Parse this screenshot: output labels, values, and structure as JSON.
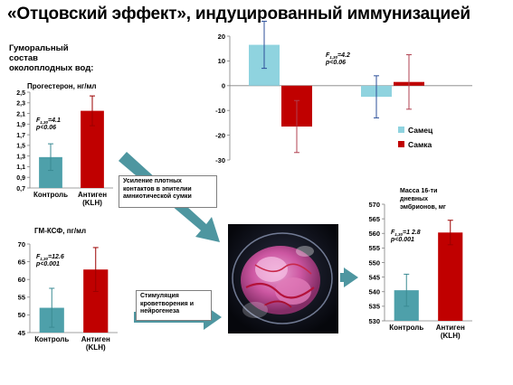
{
  "slide": {
    "title": "«Отцовский эффект», индуцированный иммунизацией",
    "humoral_heading": "Гуморальный\nсостав\nоколоплодных вод:",
    "box_contacts": "Усиление плотных\nконтактов в эпителии\nамниотической сумки",
    "box_angiogenesis": "Стимуляция\nкроветворения и\nнейрогенеза",
    "photo_icon": "embryo-photo"
  },
  "colors": {
    "teal": "#4ea0aa",
    "red": "#c00000",
    "light_blue": "#8fd3df",
    "arrow": "#4e96a0",
    "axis": "#808080"
  },
  "chart_data": [
    {
      "id": "progesterone",
      "type": "bar",
      "title": "Прогестерон,  нг/мл",
      "categories": [
        "Контроль",
        "Антиген\n(KLH)"
      ],
      "values": [
        1.28,
        2.15
      ],
      "errors": [
        0.25,
        0.28
      ],
      "ylim": [
        0.7,
        2.5
      ],
      "yticks": [
        "0,7",
        "0,9",
        "1,1",
        "1,3",
        "1,5",
        "1,7",
        "1,9",
        "2,1",
        "2,3",
        "2,5"
      ],
      "stats": [
        "F",
        "1,30",
        "=4.1",
        "p<0.06"
      ]
    },
    {
      "id": "gm_csf",
      "type": "bar",
      "title": "ГМ-КСФ, пг/мл",
      "categories": [
        "Контроль",
        "Антиген\n(KLH)"
      ],
      "values": [
        52,
        62.8
      ],
      "errors": [
        5.5,
        6.2
      ],
      "ylim": [
        45,
        70
      ],
      "yticks": [
        "45",
        "50",
        "55",
        "60",
        "65",
        "70"
      ],
      "stats": [
        "F",
        "1,30",
        "=12.6",
        "p<0.001"
      ]
    },
    {
      "id": "embryo_mass",
      "type": "bar",
      "title": "Масса 16-ти\nдневных\nэмбрионов, мг",
      "categories": [
        "Контроль",
        "Антиген\n(KLH)"
      ],
      "values": [
        540.5,
        560.3
      ],
      "errors": [
        5.5,
        4.2
      ],
      "ylim": [
        530,
        570
      ],
      "yticks": [
        "530",
        "535",
        "540",
        "545",
        "550",
        "555",
        "560",
        "565",
        "570"
      ],
      "stats": [
        "F",
        "1,30",
        "=1 2.8",
        "p<0.001"
      ]
    },
    {
      "id": "sex_effect",
      "type": "bar",
      "categories": [
        "",
        ""
      ],
      "series": [
        {
          "name": "Самец",
          "values": [
            16.5,
            -4.5
          ],
          "errors": [
            9.5,
            8.5
          ]
        },
        {
          "name": "Самка",
          "values": [
            -16.5,
            1.5
          ],
          "errors": [
            10.5,
            11.0
          ]
        }
      ],
      "ylim": [
        -30,
        20
      ],
      "yticks": [
        "20",
        "10",
        "0",
        "-10",
        "-20",
        "-30"
      ],
      "stats": [
        "F",
        "1,30",
        "=4.2",
        "p<0.06"
      ],
      "legend_position": "right"
    }
  ]
}
